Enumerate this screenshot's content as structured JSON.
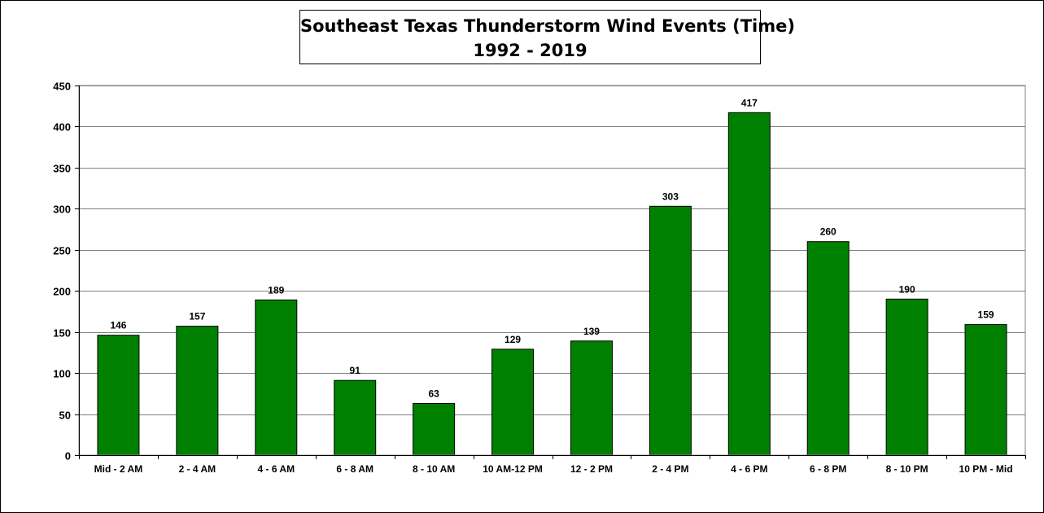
{
  "chart_data": {
    "type": "bar",
    "title": "Southeast Texas Thunderstorm Wind Events (Time)",
    "subtitle": "1992 - 2019",
    "xlabel": "",
    "ylabel": "",
    "categories": [
      "Mid - 2 AM",
      "2 - 4 AM",
      "4 - 6 AM",
      "6 - 8 AM",
      "8 - 10 AM",
      "10 AM-12 PM",
      "12 - 2 PM",
      "2 - 4 PM",
      "4 - 6 PM",
      "6 - 8 PM",
      "8 - 10 PM",
      "10 PM - Mid"
    ],
    "values": [
      146,
      157,
      189,
      91,
      63,
      129,
      139,
      303,
      417,
      260,
      190,
      159
    ],
    "ylim": [
      0,
      450
    ],
    "yticks": [
      0,
      50,
      100,
      150,
      200,
      250,
      300,
      350,
      400,
      450
    ],
    "grid": true,
    "legend": "none",
    "bar_color": "#008000",
    "data_labels": true
  }
}
